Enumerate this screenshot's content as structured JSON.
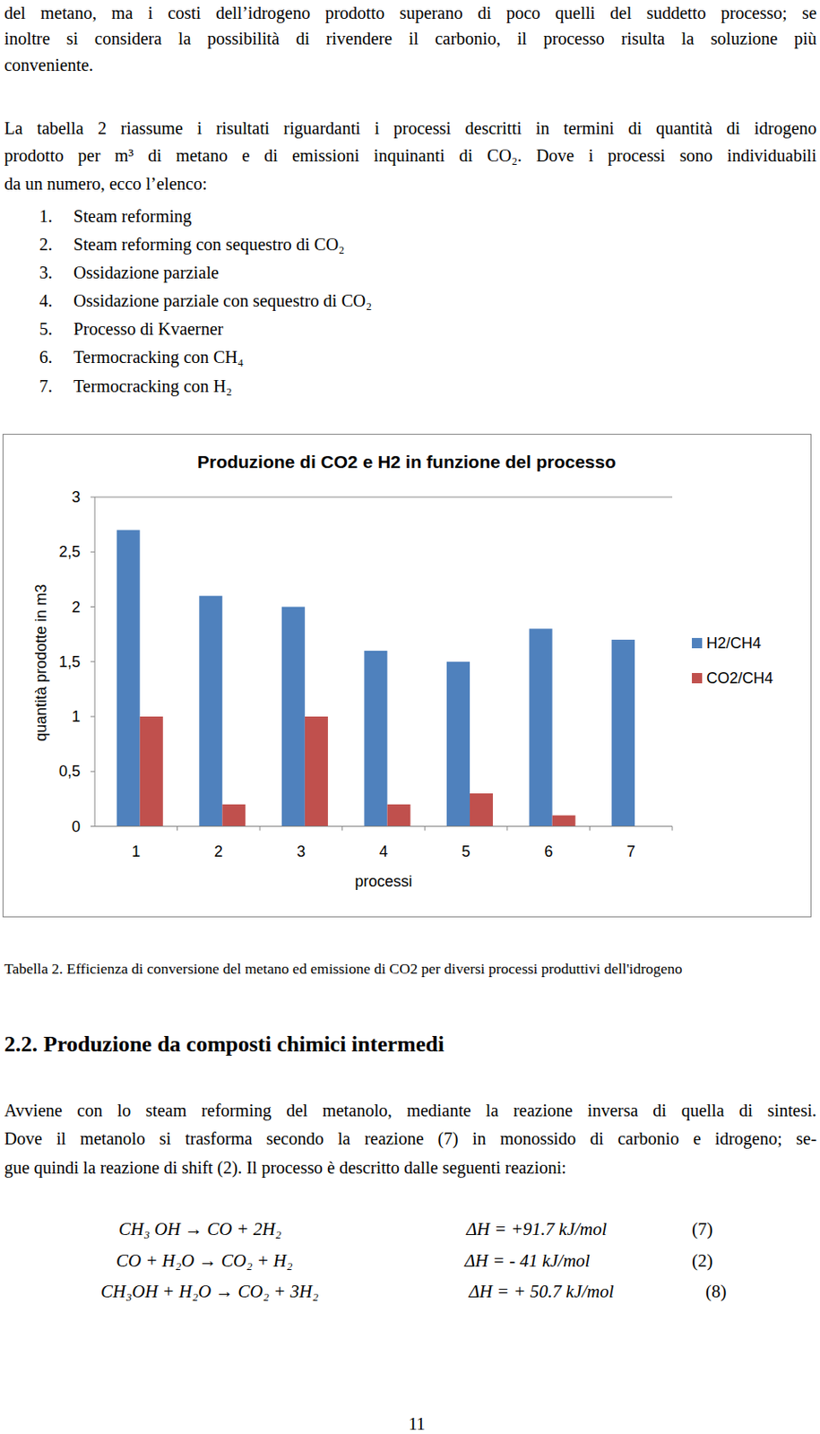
{
  "paragraphs": [
    {
      "lines": [
        "del metano, ma i costi dell’idrogeno prodotto superano di poco quelli del suddetto processo; se",
        "inoltre si considera la possibilità di rivendere il carbonio, il processo risulta la soluzione più",
        "conveniente."
      ]
    },
    {
      "lines": [
        "La tabella 2 riassume i risultati riguardanti i processi descritti in termini di quantità di idrogeno",
        "prodotto per m³ di metano e di emissioni inquinanti di CO₂. Dove i processi sono individuabili",
        "da un numero, ecco l’elenco:"
      ]
    },
    {
      "lines": [
        "Avviene con lo steam reforming del metanolo, mediante la reazione inversa di quella di sintesi.",
        "Dove il metanolo si trasforma secondo la reazione (7) in monossido di carbonio e idrogeno; se-",
        "gue quindi la reazione di shift (2). Il processo è descritto dalle seguenti reazioni:"
      ]
    }
  ],
  "list": [
    {
      "number": "1.",
      "text": "Steam reforming"
    },
    {
      "number": "2.",
      "text": "Steam reforming con sequestro di CO₂"
    },
    {
      "number": "3.",
      "text": "Ossidazione parziale"
    },
    {
      "number": "4.",
      "text": "Ossidazione parziale con sequestro di CO₂"
    },
    {
      "number": "5.",
      "text": "Processo di Kvaerner"
    },
    {
      "number": "6.",
      "text": "Termocracking con CH₄"
    },
    {
      "number": "7.",
      "text": "Termocracking con H₂"
    }
  ],
  "chart_data": {
    "type": "bar",
    "title": "Produzione di CO2 e H2 in funzione del processo",
    "x_label": "processi",
    "y_label": "quantità prodotte in m3",
    "categories": [
      "1",
      "2",
      "3",
      "4",
      "5",
      "6",
      "7"
    ],
    "series": [
      {
        "name": "H2/CH4",
        "color": "#4f81bd",
        "values": [
          2.7,
          2.1,
          2.0,
          1.6,
          1.5,
          1.8,
          1.7
        ]
      },
      {
        "name": "CO2/CH4",
        "color": "#c0504d",
        "values": [
          1.0,
          0.2,
          1.0,
          0.2,
          0.3,
          0.1,
          0
        ]
      }
    ],
    "ylim": [
      0,
      3
    ],
    "yticks": [
      0,
      {
        "value": 0.5,
        "label": "0,5"
      },
      1,
      {
        "value": 1.5,
        "label": "1,5"
      },
      2,
      {
        "value": 2.5,
        "label": "2,5"
      },
      3
    ],
    "grid": false,
    "legend": "right"
  },
  "caption": "Tabella 2. Efficienza di conversione del metano ed emissione di CO2 per diversi processi produttivi dell'idrogeno",
  "heading": {
    "number": "2.2.",
    "title": "Produzione da composti chimici intermedi"
  },
  "equations": [
    {
      "reaction": "CH₃ OH → CO + 2H₂",
      "enthalpy": "ΔH = +91.7 kJ/mol",
      "number": "(7)"
    },
    {
      "reaction": "CO + H₂O → CO₂ + H₂",
      "enthalpy": "ΔH = - 41 kJ/mol",
      "number": "(2)"
    },
    {
      "reaction": "CH₃OH + H₂O → CO₂ + 3H₂",
      "enthalpy": "ΔH = + 50.7 kJ/mol",
      "number": "(8)"
    }
  ],
  "page_number": "11"
}
